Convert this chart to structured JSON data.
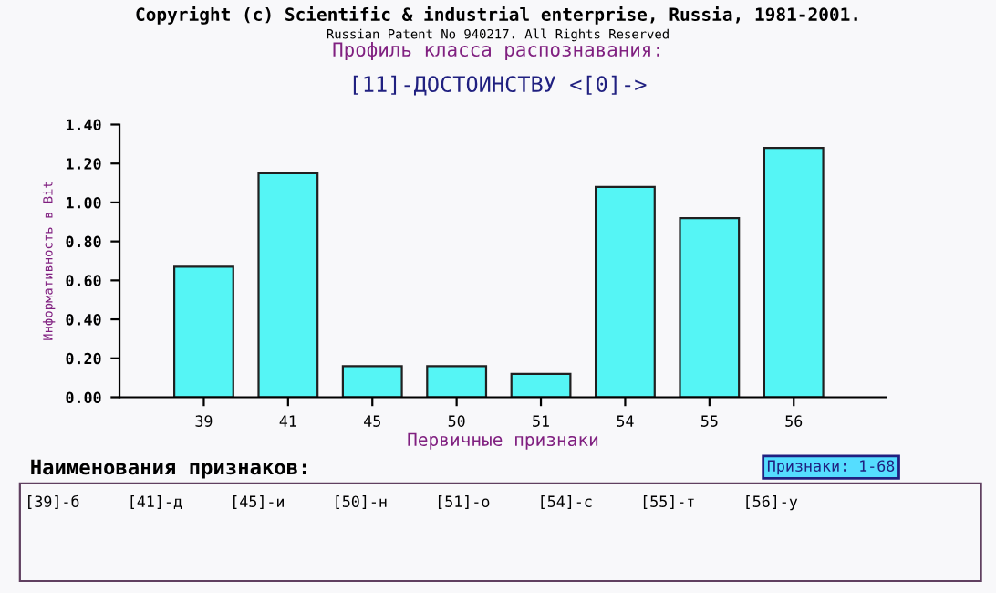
{
  "chart_data": {
    "type": "bar",
    "title": "Профиль класса распознавания:",
    "subtitle": "[11]-ДОСТОИНСТВУ <[0]->",
    "xlabel": "Первичные признаки",
    "ylabel": "Информативность в Bit",
    "categories": [
      "39",
      "41",
      "45",
      "50",
      "51",
      "54",
      "55",
      "56"
    ],
    "values": [
      0.67,
      1.15,
      0.16,
      0.16,
      0.12,
      1.08,
      0.92,
      1.28
    ],
    "color": "#55f5f5",
    "ylim": [
      0,
      1.4
    ],
    "yticks": [
      {
        "value": 0,
        "label": "0.00"
      },
      {
        "value": 0.2,
        "label": "0.20"
      },
      {
        "value": 0.4,
        "label": "0.40"
      },
      {
        "value": 0.6,
        "label": "0.60"
      },
      {
        "value": 0.8,
        "label": "0.80"
      },
      {
        "value": 1.0,
        "label": "1.00"
      },
      {
        "value": 1.2,
        "label": "1.20"
      },
      {
        "value": 1.4,
        "label": "1.40"
      }
    ],
    "grid": false,
    "annotations": [
      "Copyright (c) Scientific & industrial enterprise, Russia, 1981-2001.",
      "Russian Patent No 940217. All Rights Reserved",
      "Наименования признаков:",
      "Признаки: 1-68",
      "[39]-б",
      "[41]-д",
      "[45]-и",
      "[50]-н",
      "[51]-о",
      "[54]-с",
      "[55]-т",
      "[56]-у"
    ]
  }
}
